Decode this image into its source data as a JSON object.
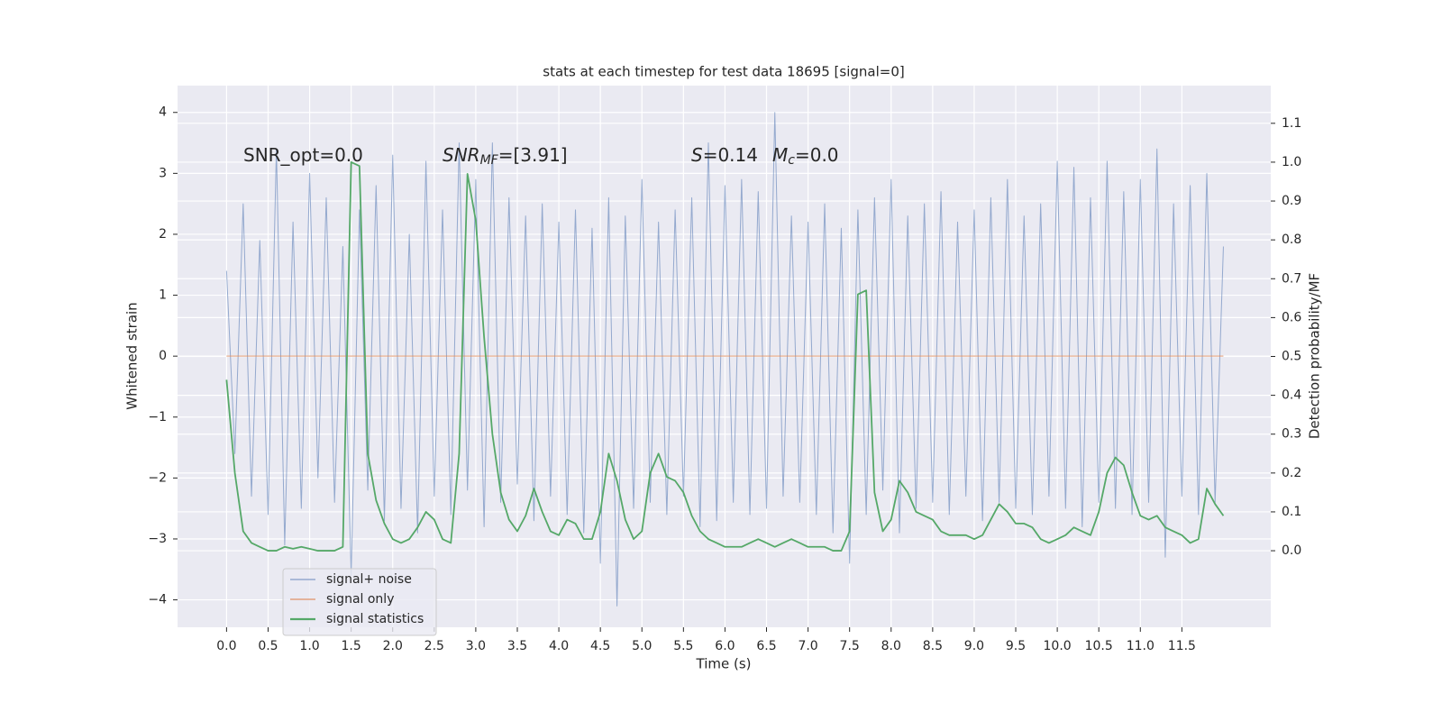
{
  "chart_data": {
    "type": "line",
    "title": "stats at each timestep for test data 18695 [signal=0]",
    "xlabel": "Time (s)",
    "ylabel": "Whitened strain",
    "y2label": "Detection probability/MF",
    "annotations": [
      [
        "SNR_opt=0.0"
      ],
      [
        "SNR",
        "MF",
        "=[3.91]"
      ],
      [
        "S",
        "=0.14",
        "M",
        "c",
        "=0.0"
      ]
    ],
    "xlim": [
      -0.59,
      12.57
    ],
    "ylim": [
      -4.45,
      4.44
    ],
    "y2lim": [
      -0.197,
      1.197
    ],
    "grid": true,
    "legend": "lower left",
    "xticks": [
      {
        "value": 0,
        "label": "0.0"
      },
      {
        "value": 0.5,
        "label": "0.5"
      },
      {
        "value": 1,
        "label": "1.0"
      },
      {
        "value": 1.5,
        "label": "1.5"
      },
      {
        "value": 2,
        "label": "2.0"
      },
      {
        "value": 2.5,
        "label": "2.5"
      },
      {
        "value": 3,
        "label": "3.0"
      },
      {
        "value": 3.5,
        "label": "3.5"
      },
      {
        "value": 4,
        "label": "4.0"
      },
      {
        "value": 4.5,
        "label": "4.5"
      },
      {
        "value": 5,
        "label": "5.0"
      },
      {
        "value": 5.5,
        "label": "5.5"
      },
      {
        "value": 6,
        "label": "6.0"
      },
      {
        "value": 6.5,
        "label": "6.5"
      },
      {
        "value": 7,
        "label": "7.0"
      },
      {
        "value": 7.5,
        "label": "7.5"
      },
      {
        "value": 8,
        "label": "8.0"
      },
      {
        "value": 8.5,
        "label": "8.5"
      },
      {
        "value": 9,
        "label": "9.0"
      },
      {
        "value": 9.5,
        "label": "9.5"
      },
      {
        "value": 10,
        "label": "10.0"
      },
      {
        "value": 10.5,
        "label": "10.5"
      },
      {
        "value": 11,
        "label": "11.0"
      },
      {
        "value": 11.5,
        "label": "11.5"
      }
    ],
    "yticks": [
      {
        "value": -4,
        "label": "−4"
      },
      {
        "value": -3,
        "label": "−3"
      },
      {
        "value": -2,
        "label": "−2"
      },
      {
        "value": -1,
        "label": "−1"
      },
      0,
      1,
      2,
      3,
      4
    ],
    "y2ticks": [
      {
        "value": 0,
        "label": "0.0"
      },
      {
        "value": 0.1,
        "label": "0.1"
      },
      {
        "value": 0.2,
        "label": "0.2"
      },
      {
        "value": 0.3,
        "label": "0.3"
      },
      {
        "value": 0.4,
        "label": "0.4"
      },
      {
        "value": 0.5,
        "label": "0.5"
      },
      {
        "value": 0.6,
        "label": "0.6"
      },
      {
        "value": 0.7,
        "label": "0.7"
      },
      {
        "value": 0.8,
        "label": "0.8"
      },
      {
        "value": 0.9,
        "label": "0.9"
      },
      {
        "value": 1,
        "label": "1.0"
      },
      {
        "value": 1.1,
        "label": "1.1"
      }
    ],
    "x": [
      0,
      0.1,
      0.2,
      0.3,
      0.4,
      0.5,
      0.6,
      0.7,
      0.8,
      0.9,
      1,
      1.1,
      1.2,
      1.3,
      1.4,
      1.5,
      1.6,
      1.7,
      1.8,
      1.9,
      2,
      2.1,
      2.2,
      2.3,
      2.4,
      2.5,
      2.6,
      2.7,
      2.8,
      2.9,
      3,
      3.1,
      3.2,
      3.3,
      3.4,
      3.5,
      3.6,
      3.7,
      3.8,
      3.9,
      4,
      4.1,
      4.2,
      4.3,
      4.4,
      4.5,
      4.6,
      4.7,
      4.8,
      4.9,
      5,
      5.1,
      5.2,
      5.3,
      5.4,
      5.5,
      5.6,
      5.7,
      5.8,
      5.9,
      6,
      6.1,
      6.2,
      6.3,
      6.4,
      6.5,
      6.6,
      6.7,
      6.8,
      6.9,
      7,
      7.1,
      7.2,
      7.3,
      7.4,
      7.5,
      7.6,
      7.7,
      7.8,
      7.9,
      8,
      8.1,
      8.2,
      8.3,
      8.4,
      8.5,
      8.6,
      8.7,
      8.8,
      8.9,
      9,
      9.1,
      9.2,
      9.3,
      9.4,
      9.5,
      9.6,
      9.7,
      9.8,
      9.9,
      10,
      10.1,
      10.2,
      10.3,
      10.4,
      10.5,
      10.6,
      10.7,
      10.8,
      10.9,
      11,
      11.1,
      11.2,
      11.3,
      11.4,
      11.5,
      11.6,
      11.7,
      11.8,
      11.9,
      12
    ],
    "series": [
      {
        "name": "signal+ noise",
        "color": "#4c72b0",
        "values": [
          1.4,
          -1.6,
          2.5,
          -2.3,
          1.9,
          -2.6,
          3.4,
          -3.1,
          2.2,
          -2.5,
          3.0,
          -2.0,
          2.6,
          -2.4,
          1.8,
          -3.6,
          2.4,
          -2.2,
          2.8,
          -2.7,
          3.3,
          -2.5,
          2.0,
          -2.9,
          3.2,
          -2.3,
          2.4,
          -2.6,
          3.5,
          -2.2,
          2.9,
          -2.8,
          3.5,
          -2.4,
          2.6,
          -2.1,
          2.3,
          -2.7,
          2.5,
          -2.3,
          2.2,
          -2.6,
          2.4,
          -2.9,
          2.1,
          -3.4,
          2.6,
          -4.1,
          2.3,
          -2.5,
          2.9,
          -2.4,
          2.2,
          -2.6,
          2.4,
          -2.3,
          2.6,
          -2.8,
          3.5,
          -2.7,
          2.8,
          -2.4,
          2.9,
          -2.6,
          2.7,
          -2.5,
          4.0,
          -2.3,
          2.3,
          -2.4,
          2.2,
          -2.6,
          2.5,
          -2.9,
          2.1,
          -3.4,
          2.4,
          -2.6,
          2.6,
          -2.2,
          2.9,
          -2.9,
          2.3,
          -2.5,
          2.5,
          -2.4,
          2.7,
          -2.6,
          2.2,
          -2.3,
          2.4,
          -2.7,
          2.6,
          -2.4,
          2.9,
          -2.5,
          2.3,
          -2.6,
          2.5,
          -2.3,
          3.2,
          -2.5,
          3.1,
          -2.8,
          2.6,
          -2.4,
          3.2,
          -2.5,
          2.7,
          -2.6,
          2.9,
          -2.4,
          3.4,
          -3.3,
          2.5,
          -2.3,
          2.8,
          -2.6,
          3.0,
          -2.4,
          1.8
        ]
      },
      {
        "name": "signal only",
        "color": "#dd8452",
        "values": [
          0,
          0,
          0,
          0,
          0,
          0,
          0,
          0,
          0,
          0,
          0,
          0,
          0,
          0,
          0,
          0,
          0,
          0,
          0,
          0,
          0,
          0,
          0,
          0,
          0,
          0,
          0,
          0,
          0,
          0,
          0,
          0,
          0,
          0,
          0,
          0,
          0,
          0,
          0,
          0,
          0,
          0,
          0,
          0,
          0,
          0,
          0,
          0,
          0,
          0,
          0,
          0,
          0,
          0,
          0,
          0,
          0,
          0,
          0,
          0,
          0,
          0,
          0,
          0,
          0,
          0,
          0,
          0,
          0,
          0,
          0,
          0,
          0,
          0,
          0,
          0,
          0,
          0,
          0,
          0,
          0,
          0,
          0,
          0,
          0,
          0,
          0,
          0,
          0,
          0,
          0,
          0,
          0,
          0,
          0,
          0,
          0,
          0,
          0,
          0,
          0,
          0,
          0,
          0,
          0,
          0,
          0,
          0,
          0,
          0,
          0,
          0,
          0,
          0,
          0,
          0,
          0,
          0,
          0,
          0,
          0
        ]
      },
      {
        "name": "signal statistics",
        "color": "#55a868",
        "axis": "y2",
        "values": [
          0.44,
          0.2,
          0.05,
          0.02,
          0.01,
          0.0,
          0.0,
          0.01,
          0.005,
          0.01,
          0.005,
          0.0,
          0.0,
          0.0,
          0.01,
          1.0,
          0.99,
          0.25,
          0.13,
          0.07,
          0.03,
          0.02,
          0.03,
          0.06,
          0.1,
          0.08,
          0.03,
          0.02,
          0.25,
          0.97,
          0.85,
          0.55,
          0.3,
          0.15,
          0.08,
          0.05,
          0.09,
          0.16,
          0.1,
          0.05,
          0.04,
          0.08,
          0.07,
          0.03,
          0.03,
          0.1,
          0.25,
          0.18,
          0.08,
          0.03,
          0.05,
          0.2,
          0.25,
          0.19,
          0.18,
          0.15,
          0.09,
          0.05,
          0.03,
          0.02,
          0.01,
          0.01,
          0.01,
          0.02,
          0.03,
          0.02,
          0.01,
          0.02,
          0.03,
          0.02,
          0.01,
          0.01,
          0.01,
          0.0,
          0.0,
          0.05,
          0.66,
          0.67,
          0.15,
          0.05,
          0.08,
          0.18,
          0.15,
          0.1,
          0.09,
          0.08,
          0.05,
          0.04,
          0.04,
          0.04,
          0.03,
          0.04,
          0.08,
          0.12,
          0.1,
          0.07,
          0.07,
          0.06,
          0.03,
          0.02,
          0.03,
          0.04,
          0.06,
          0.05,
          0.04,
          0.1,
          0.2,
          0.24,
          0.22,
          0.15,
          0.09,
          0.08,
          0.09,
          0.06,
          0.05,
          0.04,
          0.02,
          0.03,
          0.16,
          0.12,
          0.09
        ]
      }
    ]
  }
}
